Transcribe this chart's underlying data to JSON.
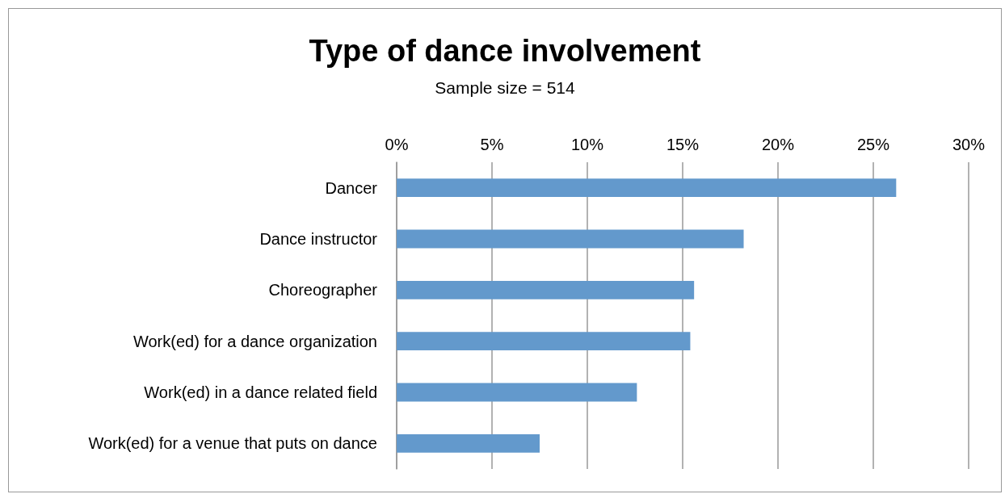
{
  "chart_data": {
    "type": "bar",
    "orientation": "horizontal",
    "title": "Type of dance involvement",
    "subtitle": "Sample size = 514",
    "categories": [
      "Dancer",
      "Dance instructor",
      "Choreographer",
      "Work(ed) for a dance organization",
      "Work(ed) in a dance related field",
      "Work(ed) for a venue that puts on dance"
    ],
    "values": [
      26.2,
      18.2,
      15.6,
      15.4,
      12.6,
      7.5
    ],
    "color": "#6399cc",
    "xlim": [
      0,
      30
    ],
    "xticks": [
      {
        "value": 0,
        "label": "0%"
      },
      {
        "value": 5,
        "label": "5%"
      },
      {
        "value": 10,
        "label": "10%"
      },
      {
        "value": 15,
        "label": "15%"
      },
      {
        "value": 20,
        "label": "20%"
      },
      {
        "value": 25,
        "label": "25%"
      },
      {
        "value": 30,
        "label": "30%"
      }
    ],
    "grid": "x"
  }
}
